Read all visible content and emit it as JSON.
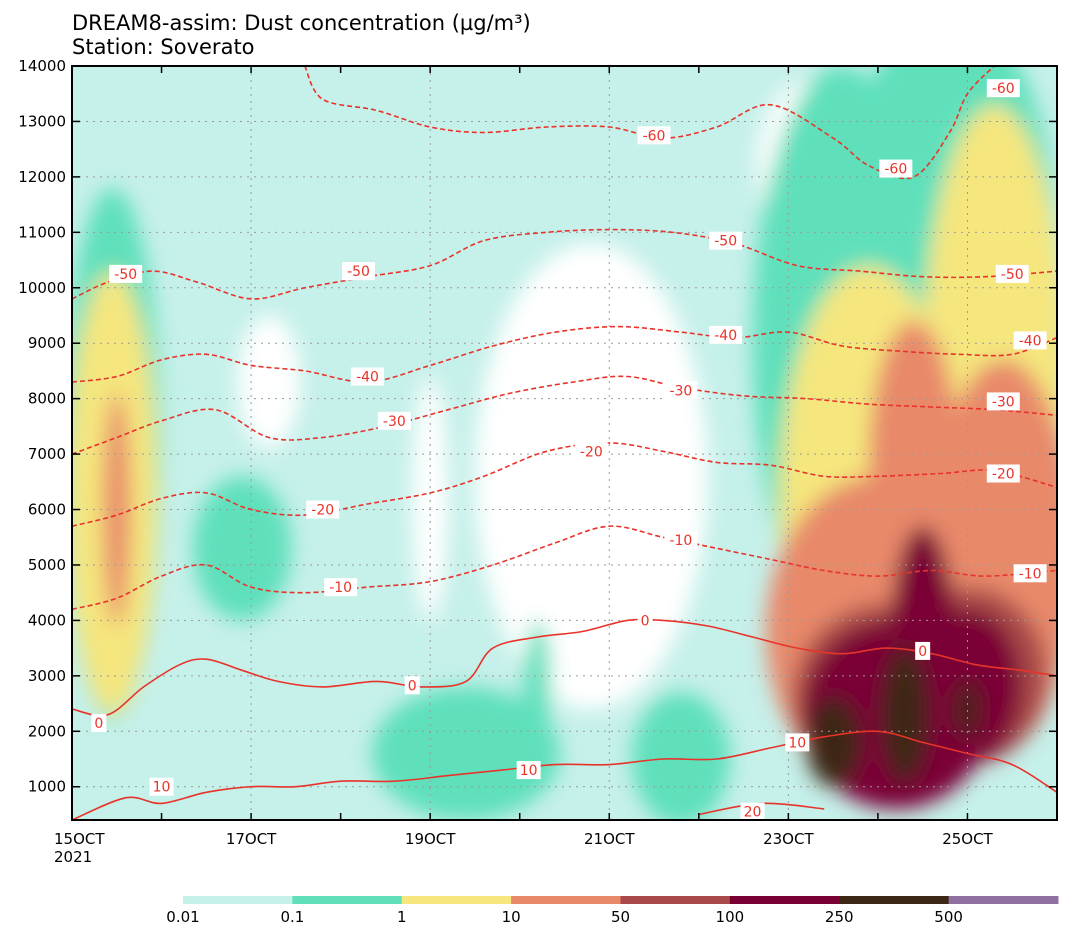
{
  "title": "DREAM8-assim: Dust concentration (µg/m³)",
  "subtitle": "Station: Soverato",
  "colors": {
    "levels": [
      "#c6f0ea",
      "#5fe0bb",
      "#f5e67e",
      "#e8896a",
      "#a9494a",
      "#7a0034",
      "#3e2614",
      "#9070a0"
    ],
    "contour": "#e8332a",
    "grid": "#9a9a9a"
  },
  "chart_data": {
    "type": "heatmap",
    "x_axis": {
      "range": [
        "15OCT",
        "26OCT"
      ],
      "ticks": [
        "15OCT",
        "17OCT",
        "19OCT",
        "21OCT",
        "23OCT",
        "25OCT"
      ],
      "year_label": "2021"
    },
    "y_axis": {
      "range": [
        400,
        14000
      ],
      "ticks": [
        1000,
        2000,
        3000,
        4000,
        5000,
        6000,
        7000,
        8000,
        9000,
        10000,
        11000,
        12000,
        13000,
        14000
      ]
    },
    "colorbar": {
      "boundaries": [
        "0.01",
        "0.1",
        "1",
        "10",
        "50",
        "100",
        "250",
        "500"
      ]
    },
    "temperature_contours": [
      {
        "label": "-60",
        "points": [
          [
            17.6,
            14000
          ],
          [
            17.8,
            13400
          ],
          [
            18.4,
            13200
          ],
          [
            19.0,
            12900
          ],
          [
            19.6,
            12800
          ],
          [
            20.3,
            12900
          ],
          [
            21.0,
            12900
          ],
          [
            21.6,
            12700
          ],
          [
            22.2,
            12900
          ],
          [
            22.8,
            13300
          ],
          [
            23.5,
            12700
          ],
          [
            23.9,
            12200
          ],
          [
            24.4,
            12000
          ],
          [
            24.8,
            12800
          ],
          [
            25.0,
            13500
          ],
          [
            25.3,
            14000
          ]
        ],
        "labels_at": [
          [
            21.5,
            12750
          ],
          [
            24.2,
            12150
          ],
          [
            25.4,
            13600
          ]
        ]
      },
      {
        "label": "-50",
        "points": [
          [
            15.0,
            9800
          ],
          [
            15.4,
            10100
          ],
          [
            15.9,
            10300
          ],
          [
            16.4,
            10100
          ],
          [
            17.0,
            9800
          ],
          [
            17.6,
            10000
          ],
          [
            18.3,
            10200
          ],
          [
            19.0,
            10400
          ],
          [
            19.6,
            10850
          ],
          [
            20.3,
            11000
          ],
          [
            21.0,
            11050
          ],
          [
            21.7,
            11000
          ],
          [
            22.4,
            10800
          ],
          [
            23.1,
            10400
          ],
          [
            23.8,
            10300
          ],
          [
            24.5,
            10200
          ],
          [
            25.2,
            10200
          ],
          [
            26.0,
            10300
          ]
        ],
        "labels_at": [
          [
            15.6,
            10250
          ],
          [
            18.2,
            10300
          ],
          [
            22.3,
            10850
          ],
          [
            25.5,
            10250
          ]
        ]
      },
      {
        "label": "-40",
        "points": [
          [
            15.0,
            8300
          ],
          [
            15.5,
            8400
          ],
          [
            16.0,
            8700
          ],
          [
            16.5,
            8800
          ],
          [
            17.0,
            8600
          ],
          [
            17.6,
            8500
          ],
          [
            18.3,
            8300
          ],
          [
            19.0,
            8600
          ],
          [
            19.7,
            8950
          ],
          [
            20.4,
            9200
          ],
          [
            21.1,
            9300
          ],
          [
            21.8,
            9200
          ],
          [
            22.4,
            9100
          ],
          [
            23.0,
            9200
          ],
          [
            23.6,
            8950
          ],
          [
            24.3,
            8850
          ],
          [
            24.9,
            8800
          ],
          [
            25.5,
            8800
          ],
          [
            26.0,
            9100
          ]
        ],
        "labels_at": [
          [
            18.3,
            8400
          ],
          [
            22.3,
            9150
          ],
          [
            25.7,
            9050
          ]
        ]
      },
      {
        "label": "-30",
        "points": [
          [
            15.0,
            7000
          ],
          [
            15.5,
            7300
          ],
          [
            16.0,
            7600
          ],
          [
            16.6,
            7800
          ],
          [
            17.2,
            7300
          ],
          [
            17.8,
            7300
          ],
          [
            18.5,
            7500
          ],
          [
            19.2,
            7800
          ],
          [
            19.9,
            8100
          ],
          [
            20.6,
            8300
          ],
          [
            21.2,
            8400
          ],
          [
            21.8,
            8200
          ],
          [
            22.5,
            8050
          ],
          [
            23.2,
            8000
          ],
          [
            23.9,
            7900
          ],
          [
            24.6,
            7850
          ],
          [
            25.3,
            7800
          ],
          [
            26.0,
            7700
          ]
        ],
        "labels_at": [
          [
            18.6,
            7600
          ],
          [
            21.8,
            8150
          ],
          [
            25.4,
            7950
          ]
        ]
      },
      {
        "label": "-20",
        "points": [
          [
            15.0,
            5700
          ],
          [
            15.5,
            5900
          ],
          [
            16.0,
            6200
          ],
          [
            16.5,
            6300
          ],
          [
            17.0,
            6000
          ],
          [
            17.6,
            5900
          ],
          [
            18.3,
            6100
          ],
          [
            19.0,
            6300
          ],
          [
            19.6,
            6600
          ],
          [
            20.3,
            7050
          ],
          [
            21.0,
            7200
          ],
          [
            21.6,
            7050
          ],
          [
            22.2,
            6850
          ],
          [
            22.8,
            6800
          ],
          [
            23.4,
            6600
          ],
          [
            24.0,
            6600
          ],
          [
            24.7,
            6650
          ],
          [
            25.3,
            6700
          ],
          [
            26.0,
            6400
          ]
        ],
        "labels_at": [
          [
            17.8,
            6000
          ],
          [
            20.8,
            7050
          ],
          [
            25.4,
            6650
          ]
        ]
      },
      {
        "label": "-10",
        "points": [
          [
            15.0,
            4200
          ],
          [
            15.5,
            4400
          ],
          [
            16.0,
            4800
          ],
          [
            16.5,
            5000
          ],
          [
            17.0,
            4600
          ],
          [
            17.6,
            4500
          ],
          [
            18.3,
            4600
          ],
          [
            19.0,
            4700
          ],
          [
            19.7,
            5000
          ],
          [
            20.4,
            5400
          ],
          [
            21.0,
            5700
          ],
          [
            21.6,
            5500
          ],
          [
            22.2,
            5300
          ],
          [
            22.8,
            5100
          ],
          [
            23.4,
            4900
          ],
          [
            24.0,
            4800
          ],
          [
            24.6,
            4900
          ],
          [
            25.2,
            4800
          ],
          [
            26.0,
            4900
          ]
        ],
        "labels_at": [
          [
            18.0,
            4600
          ],
          [
            21.8,
            5450
          ],
          [
            25.7,
            4850
          ]
        ]
      },
      {
        "label": "0",
        "points": [
          [
            15.0,
            2400
          ],
          [
            15.4,
            2300
          ],
          [
            15.8,
            2800
          ],
          [
            16.2,
            3200
          ],
          [
            16.5,
            3300
          ],
          [
            16.9,
            3100
          ],
          [
            17.3,
            2900
          ],
          [
            17.8,
            2800
          ],
          [
            18.4,
            2900
          ],
          [
            18.9,
            2800
          ],
          [
            19.4,
            2900
          ],
          [
            19.7,
            3500
          ],
          [
            20.2,
            3700
          ],
          [
            20.7,
            3800
          ],
          [
            21.2,
            4000
          ],
          [
            21.6,
            4000
          ],
          [
            22.1,
            3900
          ],
          [
            22.6,
            3700
          ],
          [
            23.1,
            3500
          ],
          [
            23.6,
            3400
          ],
          [
            24.1,
            3500
          ],
          [
            24.6,
            3400
          ],
          [
            25.1,
            3200
          ],
          [
            25.6,
            3100
          ],
          [
            26.0,
            3000
          ]
        ],
        "labels_at": [
          [
            15.3,
            2150
          ],
          [
            18.8,
            2830
          ],
          [
            21.4,
            4000
          ],
          [
            24.5,
            3450
          ]
        ]
      },
      {
        "label": "10",
        "points": [
          [
            15.0,
            400
          ],
          [
            15.6,
            800
          ],
          [
            16.0,
            700
          ],
          [
            16.5,
            900
          ],
          [
            17.0,
            1000
          ],
          [
            17.5,
            1000
          ],
          [
            18.0,
            1100
          ],
          [
            18.6,
            1100
          ],
          [
            19.2,
            1200
          ],
          [
            19.8,
            1300
          ],
          [
            20.4,
            1400
          ],
          [
            21.0,
            1400
          ],
          [
            21.6,
            1500
          ],
          [
            22.2,
            1500
          ],
          [
            22.8,
            1700
          ],
          [
            23.4,
            1900
          ],
          [
            24.0,
            2000
          ],
          [
            24.5,
            1800
          ],
          [
            25.0,
            1600
          ],
          [
            25.5,
            1400
          ],
          [
            26.0,
            900
          ]
        ],
        "labels_at": [
          [
            16.0,
            1000
          ],
          [
            20.1,
            1300
          ],
          [
            23.1,
            1800
          ]
        ]
      },
      {
        "label": "20",
        "points": [
          [
            22.0,
            500
          ],
          [
            22.7,
            700
          ],
          [
            23.4,
            600
          ]
        ],
        "labels_at": [
          [
            22.6,
            550
          ]
        ]
      }
    ]
  }
}
